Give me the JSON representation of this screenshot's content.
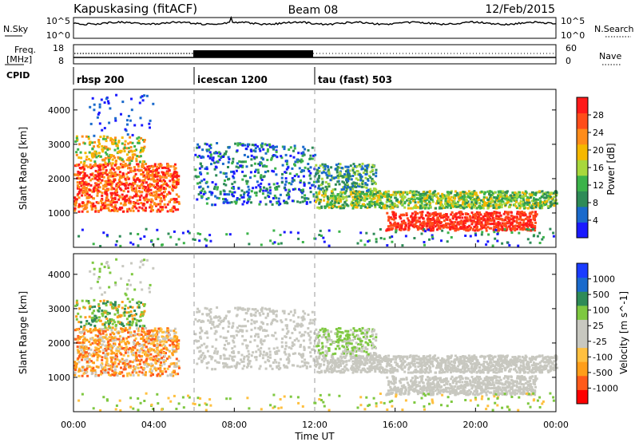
{
  "header": {
    "station": "Kapuskasing (fitACF)",
    "beam": "Beam 08",
    "date": "12/Feb/2015"
  },
  "top_panels": {
    "nsky_label": "N.Sky",
    "nsky_ticks": [
      "10^5",
      "10^0"
    ],
    "nsearch_label": "N.Search",
    "nsearch_ticks": [
      "10^5",
      "10^0"
    ],
    "freq_label_line1": "Freq.",
    "freq_label_line2": "[MHz]",
    "freq_ticks": [
      "18",
      "8"
    ],
    "nave_label": "Nave",
    "nave_ticks": [
      "60",
      "0"
    ],
    "cpid_label": "CPID",
    "cpid_segments": [
      {
        "label": "rbsp 200",
        "start": 0,
        "end": 6
      },
      {
        "label": "icescan 1200",
        "start": 6,
        "end": 12
      },
      {
        "label": "tau (fast) 503",
        "start": 12,
        "end": 24
      }
    ]
  },
  "colors": {
    "power": [
      "#1a1aff",
      "#1a6acc",
      "#2e8b57",
      "#3cb34a",
      "#a8d83c",
      "#f5b800",
      "#ff8c1a",
      "#ff4d1a",
      "#ff1a1a"
    ],
    "velocity": [
      "#ff0000",
      "#ff5a1a",
      "#ff9e1a",
      "#ffc040",
      "#c8c8c0",
      "#c8c8c0",
      "#7ec840",
      "#2e8b57",
      "#1a6acc",
      "#1a3cff"
    ]
  },
  "chart_data": [
    {
      "type": "heatmap",
      "name": "power",
      "ylabel": "Slant Range [km]",
      "xlim": [
        0,
        24
      ],
      "ylim": [
        0,
        4600
      ],
      "yticks": [
        "1000",
        "2000",
        "3000",
        "4000"
      ],
      "colorbar_label": "Power [dB]",
      "colorbar_ticks": [
        "4",
        "8",
        "12",
        "16",
        "20",
        "24",
        "28"
      ],
      "colorbar_range": [
        0,
        32
      ]
    },
    {
      "type": "heatmap",
      "name": "velocity",
      "ylabel": "Slant Range [km]",
      "xlabel": "Time UT",
      "xlim": [
        0,
        24
      ],
      "ylim": [
        0,
        4600
      ],
      "xticks": [
        "00:00",
        "04:00",
        "08:00",
        "12:00",
        "16:00",
        "20:00",
        "00:00"
      ],
      "yticks": [
        "1000",
        "2000",
        "3000",
        "4000"
      ],
      "colorbar_label": "Velocity [m s^-1]",
      "colorbar_ticks": [
        "1000",
        "500",
        "100",
        "25",
        "-25",
        "-100",
        "-500",
        "-1000"
      ]
    }
  ]
}
